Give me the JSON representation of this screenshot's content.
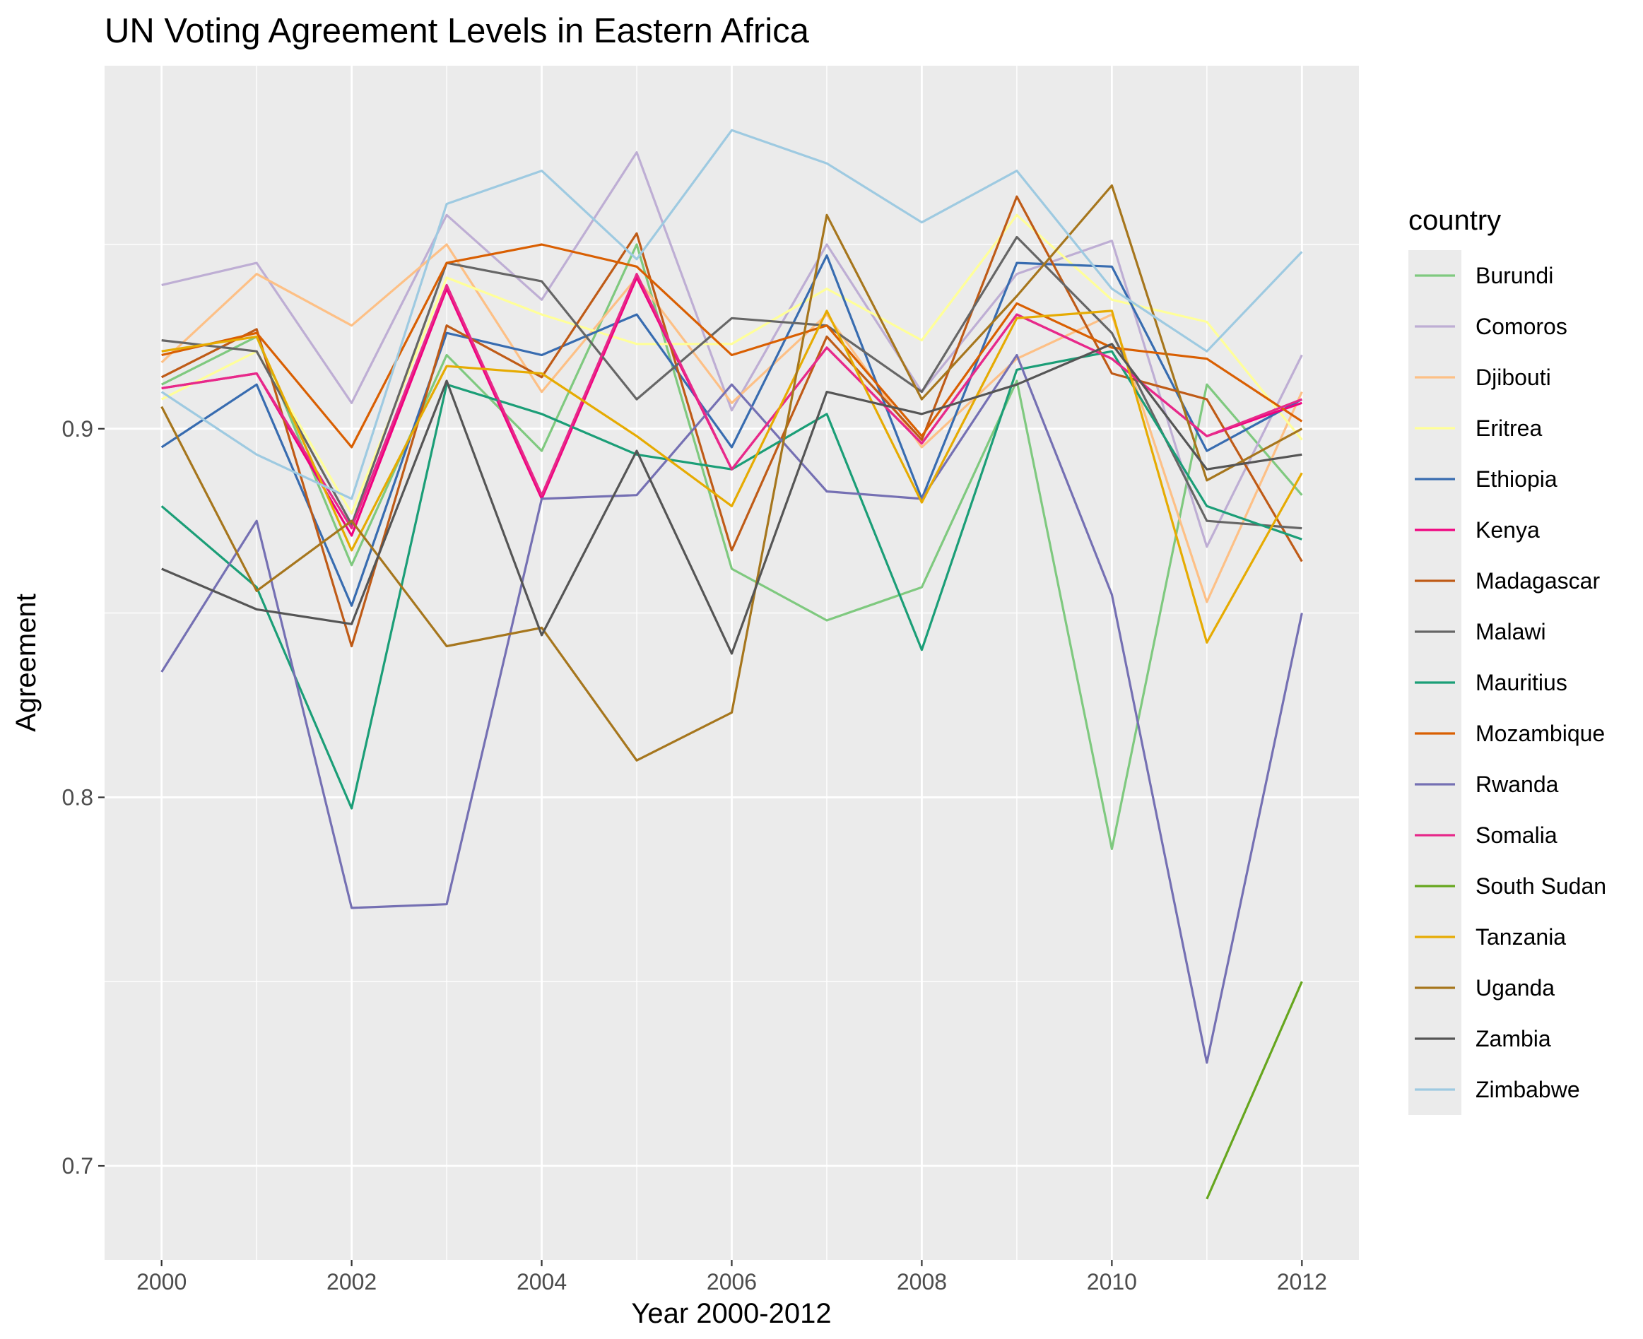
{
  "chart_data": {
    "type": "line",
    "title": "UN Voting Agreement Levels in Eastern Africa",
    "xlabel": "Year 2000-2012",
    "ylabel": "Agreement",
    "x": [
      2000,
      2001,
      2002,
      2003,
      2004,
      2005,
      2006,
      2007,
      2008,
      2009,
      2010,
      2011,
      2012
    ],
    "xlim": [
      1999.4,
      2012.6
    ],
    "ylim": [
      0.6745,
      0.9985
    ],
    "x_ticks": [
      2000,
      2002,
      2004,
      2006,
      2008,
      2010,
      2012
    ],
    "x_tick_labels": [
      "2000",
      "2002",
      "2004",
      "2006",
      "2008",
      "2010",
      "2012"
    ],
    "y_ticks": [
      0.7,
      0.8,
      0.9
    ],
    "y_tick_labels": [
      "0.7",
      "0.8",
      "0.9"
    ],
    "y_minor_ticks": [
      0.75,
      0.85,
      0.95
    ],
    "grid": true,
    "legend_title": "country",
    "legend_position": "right",
    "series": [
      {
        "name": "Burundi",
        "color": "#7FC97F",
        "values": [
          0.912,
          0.925,
          0.863,
          0.92,
          0.894,
          0.95,
          0.862,
          0.848,
          0.857,
          0.913,
          0.786,
          0.912,
          0.882
        ]
      },
      {
        "name": "Comoros",
        "color": "#BEAED4",
        "values": [
          0.939,
          0.945,
          0.907,
          0.958,
          0.935,
          0.975,
          0.905,
          0.95,
          0.91,
          0.942,
          0.951,
          0.868,
          0.92
        ]
      },
      {
        "name": "Djibouti",
        "color": "#FDC086",
        "values": [
          0.918,
          0.942,
          0.928,
          0.95,
          0.91,
          0.941,
          0.907,
          0.931,
          0.895,
          0.919,
          0.931,
          0.853,
          0.91
        ]
      },
      {
        "name": "Eritrea",
        "color": "#FFFF99",
        "values": [
          0.908,
          0.921,
          0.877,
          0.941,
          0.931,
          0.923,
          0.923,
          0.938,
          0.924,
          0.958,
          0.935,
          0.929,
          0.897
        ]
      },
      {
        "name": "Ethiopia",
        "color": "#386CB0",
        "values": [
          0.895,
          0.912,
          0.852,
          0.926,
          0.92,
          0.931,
          0.895,
          0.947,
          0.881,
          0.945,
          0.944,
          0.894,
          0.908
        ]
      },
      {
        "name": "Kenya",
        "color": "#F0027F",
        "values": [
          0.911,
          0.915,
          0.871,
          0.938,
          0.881,
          0.941,
          0.889,
          0.922,
          0.896,
          0.931,
          0.919,
          0.898,
          0.907
        ]
      },
      {
        "name": "Madagascar",
        "color": "#BF5B17",
        "values": [
          0.914,
          0.927,
          0.841,
          0.928,
          0.914,
          0.953,
          0.867,
          0.925,
          0.897,
          0.963,
          0.915,
          0.908,
          0.864
        ]
      },
      {
        "name": "Malawi",
        "color": "#666666",
        "values": [
          0.924,
          0.921,
          0.874,
          0.945,
          0.94,
          0.908,
          0.93,
          0.928,
          0.91,
          0.952,
          0.926,
          0.875,
          0.873
        ]
      },
      {
        "name": "Mauritius",
        "color": "#1B9E77",
        "values": [
          0.879,
          0.857,
          0.797,
          0.912,
          0.904,
          0.893,
          0.889,
          0.904,
          0.84,
          0.916,
          0.921,
          0.879,
          0.87
        ]
      },
      {
        "name": "Mozambique",
        "color": "#D95F02",
        "values": [
          0.92,
          0.926,
          0.895,
          0.945,
          0.95,
          0.944,
          0.92,
          0.928,
          0.898,
          0.934,
          0.922,
          0.919,
          0.902
        ]
      },
      {
        "name": "Rwanda",
        "color": "#7570B3",
        "values": [
          0.834,
          0.875,
          0.77,
          0.771,
          0.881,
          0.882,
          0.912,
          0.883,
          0.881,
          0.92,
          0.855,
          0.728,
          0.85
        ]
      },
      {
        "name": "Somalia",
        "color": "#E7298A",
        "values": [
          0.911,
          0.915,
          0.873,
          0.939,
          0.882,
          0.942,
          0.889,
          0.922,
          0.896,
          0.931,
          0.919,
          0.898,
          0.908
        ]
      },
      {
        "name": "South Sudan",
        "color": "#66A61E",
        "values": [
          null,
          null,
          null,
          null,
          null,
          null,
          null,
          null,
          null,
          null,
          null,
          0.691,
          0.75
        ]
      },
      {
        "name": "Tanzania",
        "color": "#E6AB02",
        "values": [
          0.921,
          0.925,
          0.867,
          0.917,
          0.915,
          0.898,
          0.879,
          0.932,
          0.88,
          0.93,
          0.932,
          0.842,
          0.888
        ]
      },
      {
        "name": "Uganda",
        "color": "#A6761D",
        "values": [
          0.906,
          0.856,
          0.875,
          0.841,
          0.846,
          0.81,
          0.823,
          0.958,
          0.908,
          0.936,
          0.966,
          0.886,
          0.9
        ]
      },
      {
        "name": "Zambia",
        "color": "#555555",
        "values": [
          0.862,
          0.851,
          0.847,
          0.913,
          0.844,
          0.894,
          0.839,
          0.91,
          0.904,
          0.912,
          0.923,
          0.889,
          0.893
        ]
      },
      {
        "name": "Zimbabwe",
        "color": "#9ECAE1",
        "values": [
          0.91,
          0.893,
          0.881,
          0.961,
          0.97,
          0.946,
          0.981,
          0.972,
          0.956,
          0.97,
          0.938,
          0.921,
          0.948
        ]
      }
    ]
  }
}
